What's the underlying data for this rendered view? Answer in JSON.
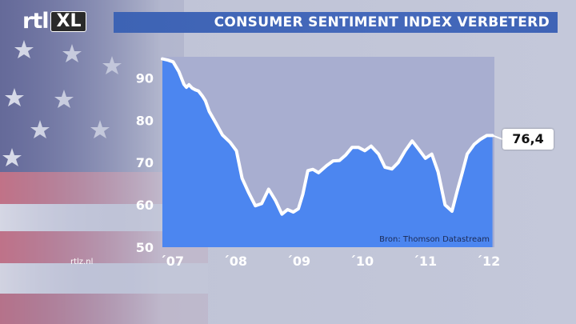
{
  "header": {
    "logo_text": "rtl",
    "logo_badge": "XL",
    "title": "CONSUMER SENTIMENT INDEX VERBETERD"
  },
  "footer": {
    "site": "rtlz.nl"
  },
  "callout": {
    "value_label": "76,4"
  },
  "colors": {
    "area": "#4c86f0",
    "line": "#ffffff",
    "plot_bg": "#a8aed0",
    "title_bar": "#4268b8"
  },
  "chart_data": {
    "type": "area",
    "title": "CONSUMER SENTIMENT INDEX VERBETERD",
    "source": "Bron: Thomson Datastream",
    "xlim": [
      2007.0,
      2012.25
    ],
    "ylim": [
      50,
      95
    ],
    "y_ticks": [
      50,
      60,
      70,
      80,
      90
    ],
    "x_ticks": [
      {
        "label": "´07",
        "value": 2007.15
      },
      {
        "label": "´08",
        "value": 2008.15
      },
      {
        "label": "´09",
        "value": 2009.15
      },
      {
        "label": "´10",
        "value": 2010.15
      },
      {
        "label": "´11",
        "value": 2011.15
      },
      {
        "label": "´12",
        "value": 2012.15
      }
    ],
    "series": [
      {
        "x": [
          2007.0,
          2007.09,
          2007.17,
          2007.26,
          2007.34,
          2007.38,
          2007.42,
          2007.47,
          2007.52,
          2007.57,
          2007.63,
          2007.68,
          2007.74,
          2007.84,
          2007.95,
          2008.07,
          2008.17,
          2008.26,
          2008.36,
          2008.47,
          2008.57,
          2008.68,
          2008.79,
          2008.89,
          2008.98,
          2009.07,
          2009.15,
          2009.22,
          2009.3,
          2009.38,
          2009.47,
          2009.6,
          2009.7,
          2009.8,
          2009.9,
          2010.0,
          2010.1,
          2010.2,
          2010.3,
          2010.42,
          2010.52,
          2010.63,
          2010.73,
          2010.84,
          2010.95,
          2011.05,
          2011.16,
          2011.26,
          2011.36,
          2011.47,
          2011.58,
          2011.66,
          2011.74,
          2011.82,
          2011.93,
          2012.03,
          2012.13,
          2012.22
        ],
        "values": [
          94.5,
          94.2,
          93.8,
          91.5,
          88.5,
          87.8,
          88.4,
          87.6,
          87.2,
          86.9,
          85.8,
          84.6,
          82.1,
          79.5,
          76.5,
          74.8,
          72.8,
          66.3,
          63.0,
          59.8,
          60.3,
          63.7,
          61.0,
          57.8,
          58.9,
          58.3,
          59.1,
          62.5,
          68.1,
          68.4,
          67.6,
          69.3,
          70.4,
          70.5,
          71.8,
          73.6,
          73.6,
          72.8,
          73.9,
          72.0,
          68.9,
          68.5,
          70.0,
          72.8,
          75.1,
          73.2,
          71.0,
          72.0,
          67.8,
          60.0,
          58.5,
          63.2,
          67.5,
          72.0,
          74.3,
          75.5,
          76.4,
          76.4
        ]
      }
    ],
    "last_value_label": "76,4",
    "grid": false
  }
}
